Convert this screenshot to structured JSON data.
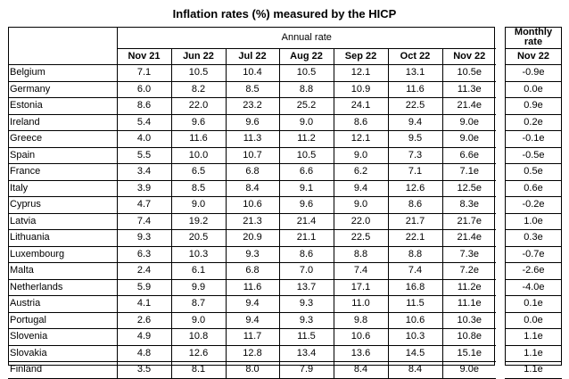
{
  "title": "Inflation rates (%) measured by the HICP",
  "annual_rate_label": "Annual rate",
  "monthly_rate_label_line1": "Monthly",
  "monthly_rate_label_line2": "rate",
  "annual_columns": [
    "Nov 21",
    "Jun 22",
    "Jul 22",
    "Aug 22",
    "Sep 22",
    "Oct 22",
    "Nov 22"
  ],
  "monthly_column": "Nov 22",
  "rows": [
    {
      "country": "Belgium",
      "values": [
        "7.1",
        "10.5",
        "10.4",
        "10.5",
        "12.1",
        "13.1",
        "10.5e"
      ],
      "monthly": "-0.9e"
    },
    {
      "country": "Germany",
      "values": [
        "6.0",
        "8.2",
        "8.5",
        "8.8",
        "10.9",
        "11.6",
        "11.3e"
      ],
      "monthly": "0.0e"
    },
    {
      "country": "Estonia",
      "values": [
        "8.6",
        "22.0",
        "23.2",
        "25.2",
        "24.1",
        "22.5",
        "21.4e"
      ],
      "monthly": "0.9e"
    },
    {
      "country": "Ireland",
      "values": [
        "5.4",
        "9.6",
        "9.6",
        "9.0",
        "8.6",
        "9.4",
        "9.0e"
      ],
      "monthly": "0.2e"
    },
    {
      "country": "Greece",
      "values": [
        "4.0",
        "11.6",
        "11.3",
        "11.2",
        "12.1",
        "9.5",
        "9.0e"
      ],
      "monthly": "-0.1e"
    },
    {
      "country": "Spain",
      "values": [
        "5.5",
        "10.0",
        "10.7",
        "10.5",
        "9.0",
        "7.3",
        "6.6e"
      ],
      "monthly": "-0.5e"
    },
    {
      "country": "France",
      "values": [
        "3.4",
        "6.5",
        "6.8",
        "6.6",
        "6.2",
        "7.1",
        "7.1e"
      ],
      "monthly": "0.5e"
    },
    {
      "country": "Italy",
      "values": [
        "3.9",
        "8.5",
        "8.4",
        "9.1",
        "9.4",
        "12.6",
        "12.5e"
      ],
      "monthly": "0.6e"
    },
    {
      "country": "Cyprus",
      "values": [
        "4.7",
        "9.0",
        "10.6",
        "9.6",
        "9.0",
        "8.6",
        "8.3e"
      ],
      "monthly": "-0.2e"
    },
    {
      "country": "Latvia",
      "values": [
        "7.4",
        "19.2",
        "21.3",
        "21.4",
        "22.0",
        "21.7",
        "21.7e"
      ],
      "monthly": "1.0e"
    },
    {
      "country": "Lithuania",
      "values": [
        "9.3",
        "20.5",
        "20.9",
        "21.1",
        "22.5",
        "22.1",
        "21.4e"
      ],
      "monthly": "0.3e"
    },
    {
      "country": "Luxembourg",
      "values": [
        "6.3",
        "10.3",
        "9.3",
        "8.6",
        "8.8",
        "8.8",
        "7.3e"
      ],
      "monthly": "-0.7e"
    },
    {
      "country": "Malta",
      "values": [
        "2.4",
        "6.1",
        "6.8",
        "7.0",
        "7.4",
        "7.4",
        "7.2e"
      ],
      "monthly": "-2.6e"
    },
    {
      "country": "Netherlands",
      "values": [
        "5.9",
        "9.9",
        "11.6",
        "13.7",
        "17.1",
        "16.8",
        "11.2e"
      ],
      "monthly": "-4.0e"
    },
    {
      "country": "Austria",
      "values": [
        "4.1",
        "8.7",
        "9.4",
        "9.3",
        "11.0",
        "11.5",
        "11.1e"
      ],
      "monthly": "0.1e"
    },
    {
      "country": "Portugal",
      "values": [
        "2.6",
        "9.0",
        "9.4",
        "9.3",
        "9.8",
        "10.6",
        "10.3e"
      ],
      "monthly": "0.0e"
    },
    {
      "country": "Slovenia",
      "values": [
        "4.9",
        "10.8",
        "11.7",
        "11.5",
        "10.6",
        "10.3",
        "10.8e"
      ],
      "monthly": "1.1e"
    },
    {
      "country": "Slovakia",
      "values": [
        "4.8",
        "12.6",
        "12.8",
        "13.4",
        "13.6",
        "14.5",
        "15.1e"
      ],
      "monthly": "1.1e"
    },
    {
      "country": "Finland",
      "values": [
        "3.5",
        "8.1",
        "8.0",
        "7.9",
        "8.4",
        "8.4",
        "9.0e"
      ],
      "monthly": "1.1e"
    }
  ]
}
